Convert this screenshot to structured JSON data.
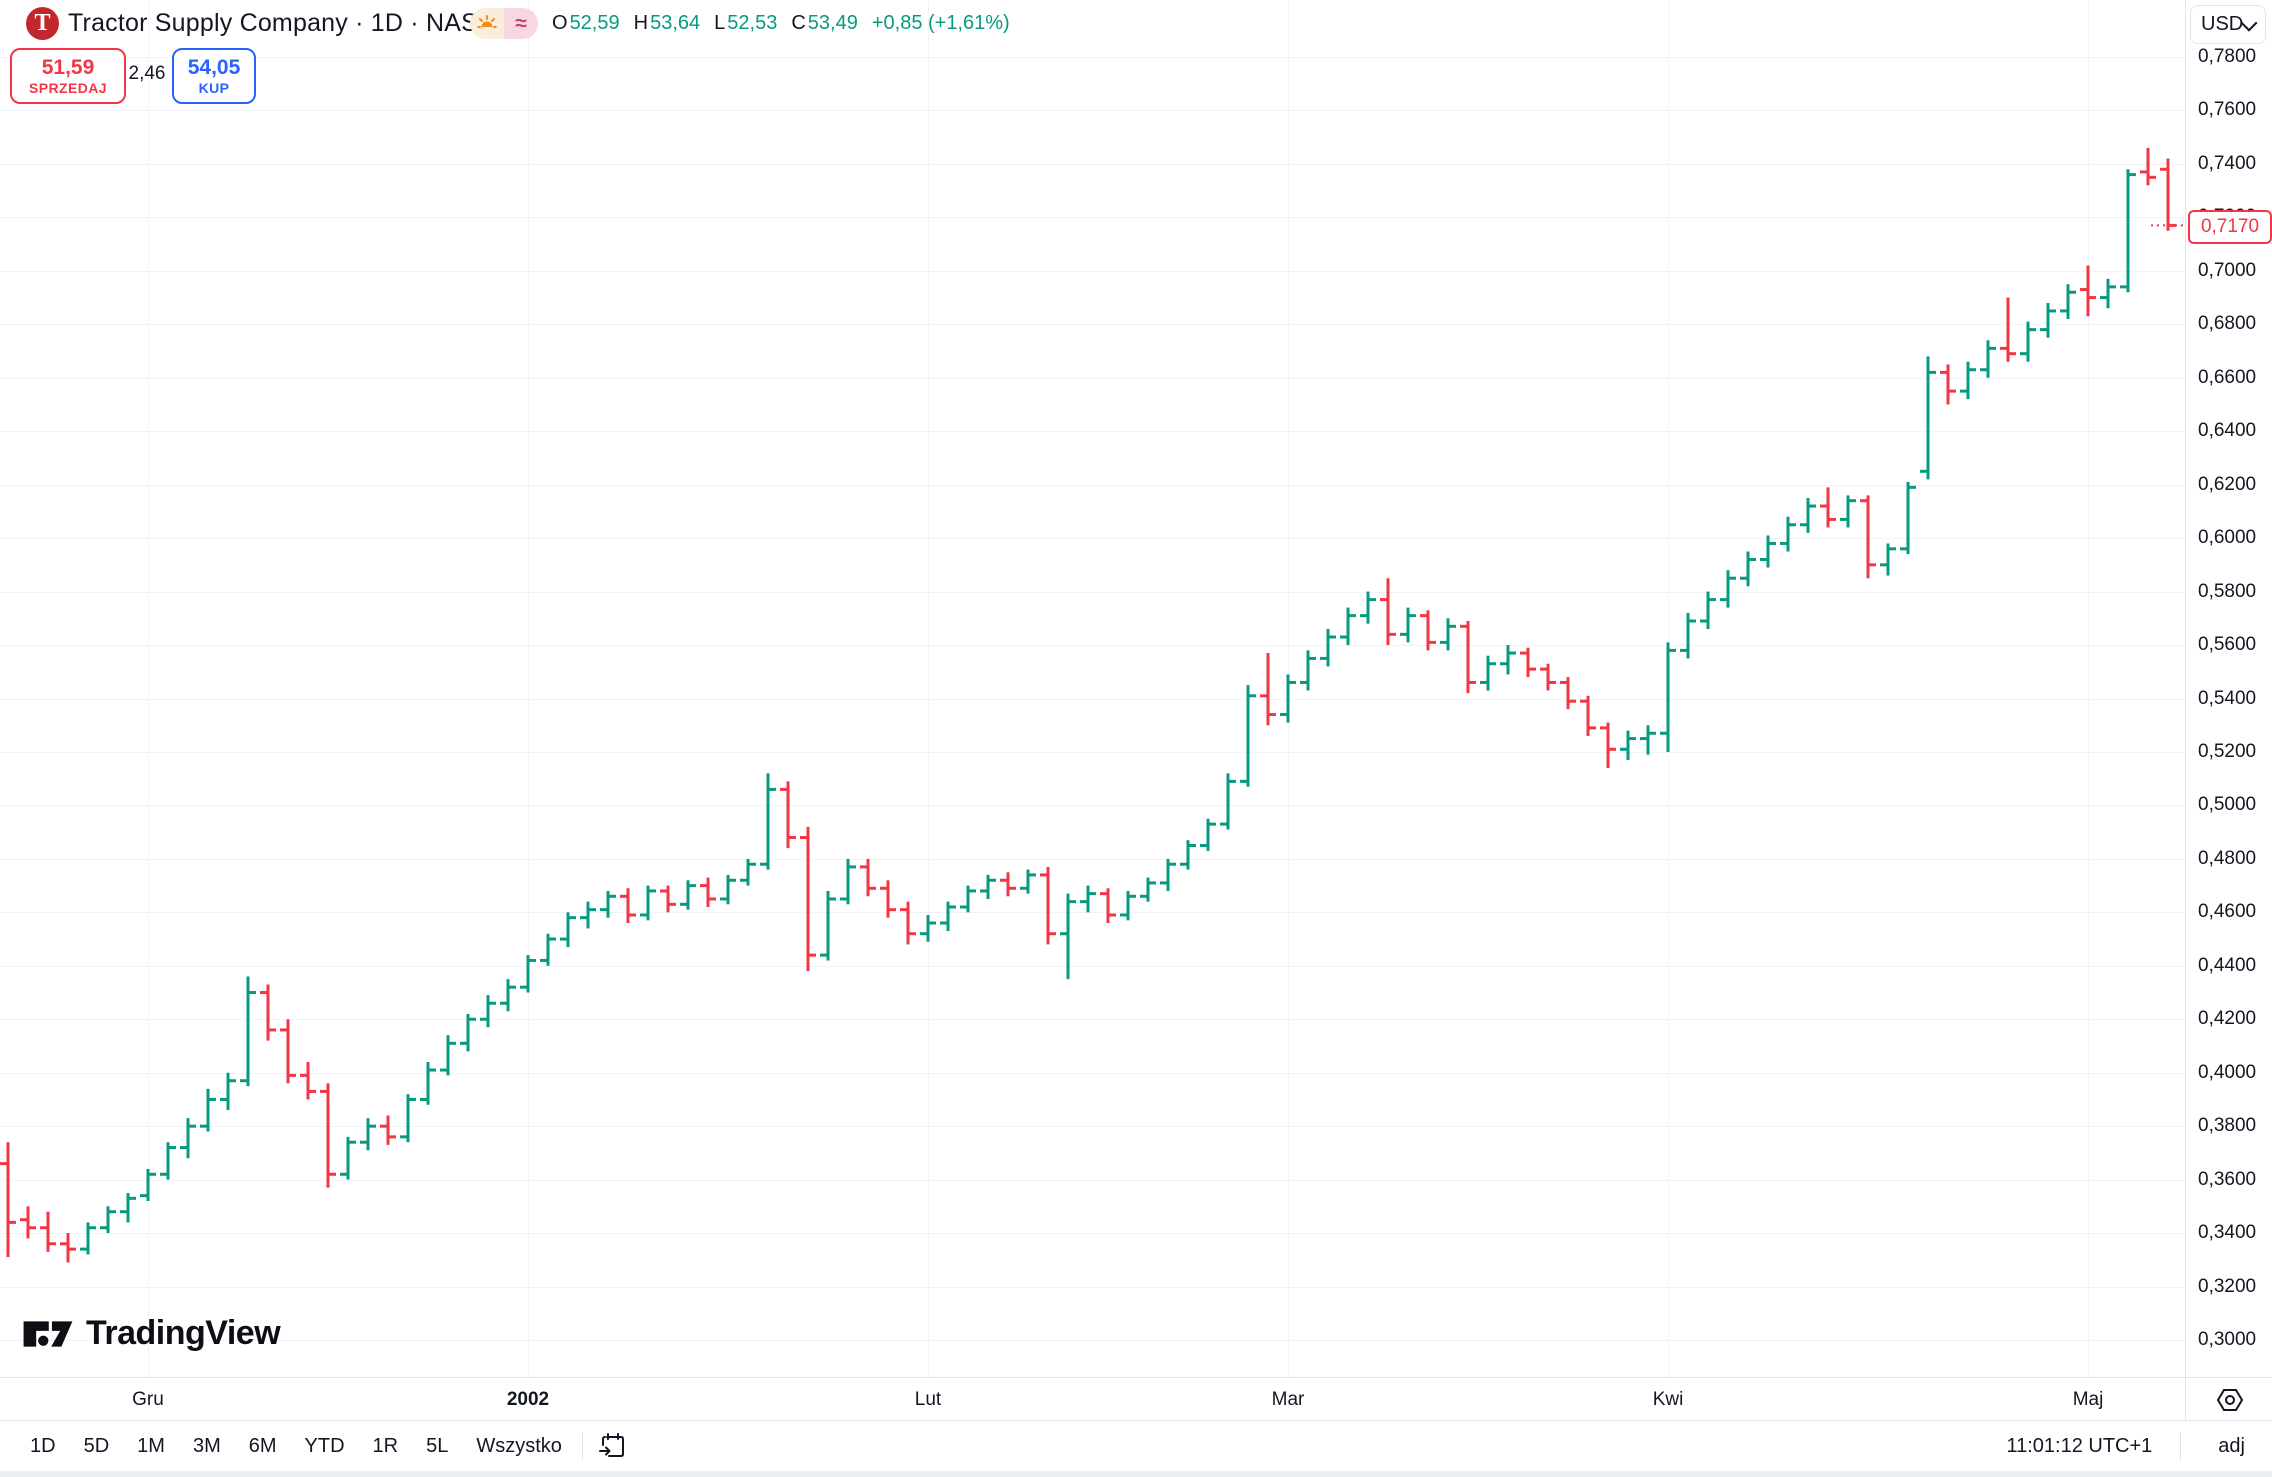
{
  "header": {
    "logo_letter": "T",
    "title": "Tractor Supply Company · 1D · NASDAQ",
    "status_icons": [
      {
        "name": "sunrise-icon"
      },
      {
        "name": "wave-icon",
        "glyph": "≈"
      }
    ],
    "ohlc": {
      "open_label": "O",
      "open": "52,59",
      "high_label": "H",
      "high": "53,64",
      "low_label": "L",
      "low": "52,53",
      "close_label": "C",
      "close": "53,49",
      "change": "+0,85 (+1,61%)"
    }
  },
  "order_panel": {
    "sell_price": "51,59",
    "sell_label": "SPRZEDAJ",
    "spread": "2,46",
    "buy_price": "54,05",
    "buy_label": "KUP"
  },
  "price_axis": {
    "currency": "USD",
    "last_price": {
      "text": "0,7170",
      "value": 0.717
    },
    "labels": [
      {
        "text": "0,7800",
        "value": 0.78
      },
      {
        "text": "0,7600",
        "value": 0.76
      },
      {
        "text": "0,7400",
        "value": 0.74
      },
      {
        "text": "0,7200",
        "value": 0.72
      },
      {
        "text": "0,7000",
        "value": 0.7
      },
      {
        "text": "0,6800",
        "value": 0.68
      },
      {
        "text": "0,6600",
        "value": 0.66
      },
      {
        "text": "0,6400",
        "value": 0.64
      },
      {
        "text": "0,6200",
        "value": 0.62
      },
      {
        "text": "0,6000",
        "value": 0.6
      },
      {
        "text": "0,5800",
        "value": 0.58
      },
      {
        "text": "0,5600",
        "value": 0.56
      },
      {
        "text": "0,5400",
        "value": 0.54
      },
      {
        "text": "0,5200",
        "value": 0.52
      },
      {
        "text": "0,5000",
        "value": 0.5
      },
      {
        "text": "0,4800",
        "value": 0.48
      },
      {
        "text": "0,4600",
        "value": 0.46
      },
      {
        "text": "0,4400",
        "value": 0.44
      },
      {
        "text": "0,4200",
        "value": 0.42
      },
      {
        "text": "0,4000",
        "value": 0.4
      },
      {
        "text": "0,3800",
        "value": 0.38
      },
      {
        "text": "0,3600",
        "value": 0.36
      },
      {
        "text": "0,3400",
        "value": 0.34
      },
      {
        "text": "0,3200",
        "value": 0.32
      },
      {
        "text": "0,3000",
        "value": 0.3
      }
    ]
  },
  "toolbar": {
    "ranges": [
      "1D",
      "5D",
      "1M",
      "3M",
      "6M",
      "YTD",
      "1R",
      "5L",
      "Wszystko"
    ],
    "clock": "11:01:12 UTC+1",
    "adjust": "adj"
  },
  "watermark": "TradingView",
  "chart_data": {
    "type": "ohlc-bar",
    "title": "Tractor Supply Company · 1D · NASDAQ (adjusted, USD)",
    "ylabel": "USD",
    "ylim": [
      0.3,
      0.78
    ],
    "grid": true,
    "up_color": "#089981",
    "down_color": "#f23645",
    "last_close": 0.717,
    "months": [
      {
        "label": "Gru",
        "index": 7
      },
      {
        "label": "2002",
        "index": 26,
        "bold": true
      },
      {
        "label": "Lut",
        "index": 46
      },
      {
        "label": "Mar",
        "index": 64
      },
      {
        "label": "Kwi",
        "index": 83
      },
      {
        "label": "Maj",
        "index": 104
      }
    ],
    "bars": [
      [
        0.366,
        0.374,
        0.331,
        0.344
      ],
      [
        0.345,
        0.35,
        0.338,
        0.342
      ],
      [
        0.342,
        0.348,
        0.333,
        0.336
      ],
      [
        0.336,
        0.34,
        0.329,
        0.334
      ],
      [
        0.334,
        0.344,
        0.332,
        0.342
      ],
      [
        0.342,
        0.35,
        0.34,
        0.348
      ],
      [
        0.348,
        0.355,
        0.344,
        0.353
      ],
      [
        0.354,
        0.364,
        0.352,
        0.362
      ],
      [
        0.362,
        0.374,
        0.36,
        0.372
      ],
      [
        0.372,
        0.383,
        0.368,
        0.38
      ],
      [
        0.38,
        0.394,
        0.378,
        0.39
      ],
      [
        0.39,
        0.4,
        0.386,
        0.397
      ],
      [
        0.397,
        0.436,
        0.395,
        0.43
      ],
      [
        0.43,
        0.433,
        0.412,
        0.416
      ],
      [
        0.416,
        0.42,
        0.396,
        0.399
      ],
      [
        0.399,
        0.404,
        0.39,
        0.393
      ],
      [
        0.393,
        0.396,
        0.357,
        0.362
      ],
      [
        0.362,
        0.376,
        0.36,
        0.374
      ],
      [
        0.374,
        0.383,
        0.371,
        0.38
      ],
      [
        0.38,
        0.384,
        0.373,
        0.376
      ],
      [
        0.376,
        0.392,
        0.374,
        0.39
      ],
      [
        0.39,
        0.404,
        0.388,
        0.401
      ],
      [
        0.401,
        0.414,
        0.399,
        0.411
      ],
      [
        0.411,
        0.422,
        0.408,
        0.42
      ],
      [
        0.42,
        0.429,
        0.417,
        0.426
      ],
      [
        0.426,
        0.435,
        0.423,
        0.432
      ],
      [
        0.432,
        0.444,
        0.43,
        0.442
      ],
      [
        0.442,
        0.452,
        0.44,
        0.45
      ],
      [
        0.45,
        0.46,
        0.447,
        0.458
      ],
      [
        0.458,
        0.464,
        0.454,
        0.461
      ],
      [
        0.461,
        0.468,
        0.458,
        0.466
      ],
      [
        0.466,
        0.469,
        0.456,
        0.459
      ],
      [
        0.459,
        0.47,
        0.457,
        0.468
      ],
      [
        0.468,
        0.47,
        0.46,
        0.463
      ],
      [
        0.463,
        0.472,
        0.461,
        0.47
      ],
      [
        0.47,
        0.473,
        0.462,
        0.465
      ],
      [
        0.465,
        0.474,
        0.463,
        0.472
      ],
      [
        0.472,
        0.48,
        0.47,
        0.478
      ],
      [
        0.478,
        0.512,
        0.476,
        0.506
      ],
      [
        0.506,
        0.509,
        0.484,
        0.488
      ],
      [
        0.488,
        0.492,
        0.438,
        0.444
      ],
      [
        0.444,
        0.468,
        0.442,
        0.465
      ],
      [
        0.465,
        0.48,
        0.463,
        0.477
      ],
      [
        0.477,
        0.48,
        0.466,
        0.469
      ],
      [
        0.469,
        0.472,
        0.458,
        0.461
      ],
      [
        0.461,
        0.464,
        0.448,
        0.452
      ],
      [
        0.452,
        0.459,
        0.449,
        0.456
      ],
      [
        0.456,
        0.464,
        0.453,
        0.462
      ],
      [
        0.462,
        0.47,
        0.46,
        0.468
      ],
      [
        0.468,
        0.474,
        0.465,
        0.472
      ],
      [
        0.472,
        0.475,
        0.466,
        0.469
      ],
      [
        0.469,
        0.476,
        0.467,
        0.474
      ],
      [
        0.474,
        0.477,
        0.448,
        0.452
      ],
      [
        0.452,
        0.467,
        0.435,
        0.464
      ],
      [
        0.464,
        0.47,
        0.46,
        0.467
      ],
      [
        0.467,
        0.469,
        0.456,
        0.459
      ],
      [
        0.459,
        0.468,
        0.457,
        0.466
      ],
      [
        0.466,
        0.473,
        0.464,
        0.471
      ],
      [
        0.471,
        0.48,
        0.468,
        0.478
      ],
      [
        0.478,
        0.487,
        0.476,
        0.485
      ],
      [
        0.485,
        0.495,
        0.483,
        0.493
      ],
      [
        0.493,
        0.512,
        0.491,
        0.509
      ],
      [
        0.509,
        0.545,
        0.507,
        0.541
      ],
      [
        0.541,
        0.557,
        0.53,
        0.534
      ],
      [
        0.534,
        0.549,
        0.531,
        0.546
      ],
      [
        0.546,
        0.558,
        0.543,
        0.555
      ],
      [
        0.555,
        0.566,
        0.552,
        0.563
      ],
      [
        0.563,
        0.574,
        0.56,
        0.571
      ],
      [
        0.571,
        0.58,
        0.568,
        0.577
      ],
      [
        0.577,
        0.585,
        0.56,
        0.564
      ],
      [
        0.564,
        0.574,
        0.561,
        0.571
      ],
      [
        0.571,
        0.573,
        0.558,
        0.561
      ],
      [
        0.561,
        0.57,
        0.558,
        0.567
      ],
      [
        0.567,
        0.569,
        0.542,
        0.546
      ],
      [
        0.546,
        0.556,
        0.543,
        0.553
      ],
      [
        0.553,
        0.56,
        0.549,
        0.557
      ],
      [
        0.557,
        0.559,
        0.548,
        0.551
      ],
      [
        0.551,
        0.553,
        0.543,
        0.546
      ],
      [
        0.546,
        0.548,
        0.536,
        0.539
      ],
      [
        0.539,
        0.541,
        0.526,
        0.529
      ],
      [
        0.529,
        0.531,
        0.514,
        0.521
      ],
      [
        0.521,
        0.528,
        0.517,
        0.525
      ],
      [
        0.525,
        0.53,
        0.519,
        0.527
      ],
      [
        0.527,
        0.561,
        0.52,
        0.558
      ],
      [
        0.558,
        0.572,
        0.555,
        0.569
      ],
      [
        0.569,
        0.58,
        0.566,
        0.577
      ],
      [
        0.577,
        0.588,
        0.574,
        0.585
      ],
      [
        0.585,
        0.595,
        0.582,
        0.592
      ],
      [
        0.592,
        0.601,
        0.589,
        0.598
      ],
      [
        0.598,
        0.608,
        0.595,
        0.605
      ],
      [
        0.605,
        0.615,
        0.602,
        0.612
      ],
      [
        0.612,
        0.619,
        0.604,
        0.607
      ],
      [
        0.607,
        0.616,
        0.604,
        0.614
      ],
      [
        0.614,
        0.616,
        0.585,
        0.59
      ],
      [
        0.59,
        0.598,
        0.586,
        0.596
      ],
      [
        0.596,
        0.621,
        0.594,
        0.619
      ],
      [
        0.625,
        0.668,
        0.622,
        0.662
      ],
      [
        0.662,
        0.665,
        0.65,
        0.655
      ],
      [
        0.655,
        0.666,
        0.652,
        0.663
      ],
      [
        0.663,
        0.674,
        0.66,
        0.671
      ],
      [
        0.671,
        0.69,
        0.666,
        0.669
      ],
      [
        0.669,
        0.681,
        0.666,
        0.678
      ],
      [
        0.678,
        0.688,
        0.675,
        0.685
      ],
      [
        0.685,
        0.695,
        0.682,
        0.692
      ],
      [
        0.693,
        0.702,
        0.683,
        0.69
      ],
      [
        0.69,
        0.697,
        0.686,
        0.694
      ],
      [
        0.694,
        0.738,
        0.692,
        0.736
      ],
      [
        0.737,
        0.746,
        0.732,
        0.735
      ],
      [
        0.738,
        0.742,
        0.715,
        0.717
      ]
    ]
  }
}
